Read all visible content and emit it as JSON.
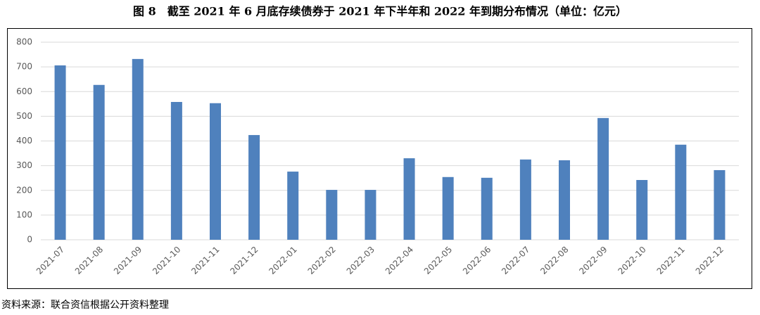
{
  "chart_data": {
    "type": "bar",
    "title": "图 8　截至 2021 年 6 月底存续债券于 2021 年下半年和 2022 年到期分布情况（单位：亿元）",
    "source": "资料来源：联合资信根据公开资料整理",
    "categories": [
      "2021-07",
      "2021-08",
      "2021-09",
      "2021-10",
      "2021-11",
      "2021-12",
      "2022-01",
      "2022-02",
      "2022-03",
      "2022-04",
      "2022-05",
      "2022-06",
      "2022-07",
      "2022-08",
      "2022-09",
      "2022-10",
      "2022-11",
      "2022-12"
    ],
    "values": [
      706,
      627,
      732,
      558,
      553,
      424,
      276,
      202,
      202,
      330,
      254,
      251,
      325,
      322,
      493,
      242,
      385,
      282
    ],
    "color": "#4f81bd",
    "ylim": [
      0,
      800
    ],
    "yticks": [
      0,
      100,
      200,
      300,
      400,
      500,
      600,
      700,
      800
    ],
    "grid": true
  }
}
